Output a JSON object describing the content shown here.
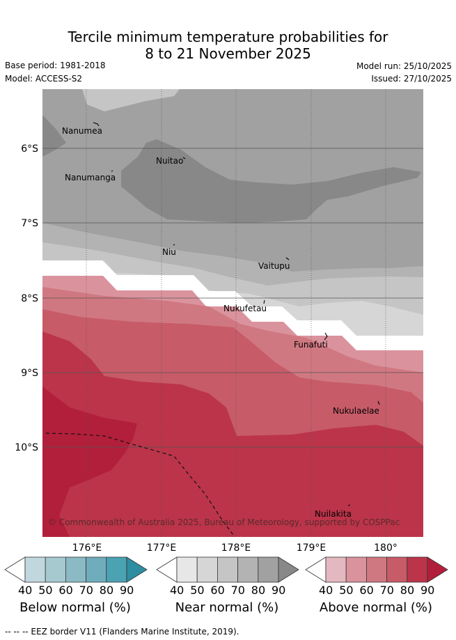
{
  "title": {
    "line1": "Tercile minimum temperature probabilities for",
    "line2": "8 to 21 November 2025"
  },
  "meta": {
    "base_period": "Base period: 1981-2018",
    "model": "Model: ACCESS-S2",
    "model_run": "Model run: 25/10/2025",
    "issued": "Issued: 27/10/2025"
  },
  "map": {
    "lat_labels": [
      "6°S",
      "7°S",
      "8°S",
      "9°S",
      "10°S"
    ],
    "lon_labels": [
      "176°E",
      "177°E",
      "178°E",
      "179°E",
      "180°"
    ],
    "places": [
      "Nanumea",
      "Nanumanga",
      "Nuitao",
      "Niu",
      "Vaitupu",
      "Nukufetau",
      "Funafuti",
      "Nukulaelae",
      "Nuilakita"
    ],
    "copyright": "© Commonwealth of Australia 2025, Bureau of Meteorology, supported by COSPPac"
  },
  "colorbars": [
    {
      "name": "Below normal (%)",
      "ticks": [
        "40",
        "50",
        "60",
        "70",
        "80",
        "90"
      ],
      "colors": [
        "#c0d7de",
        "#a6c9d0",
        "#8bbac5",
        "#6fadbd",
        "#4ba2b2",
        "#2e8da1"
      ]
    },
    {
      "name": "Near normal (%)",
      "ticks": [
        "40",
        "50",
        "60",
        "70",
        "80",
        "90"
      ],
      "colors": [
        "#e7e7e7",
        "#d6d6d6",
        "#c5c5c5",
        "#b3b3b3",
        "#a1a1a1",
        "#888888"
      ]
    },
    {
      "name": "Above normal (%)",
      "ticks": [
        "40",
        "50",
        "60",
        "70",
        "80",
        "90"
      ],
      "colors": [
        "#e4b8c0",
        "#da939d",
        "#d07881",
        "#c75b68",
        "#bb344a",
        "#b21f3a"
      ]
    }
  ],
  "footer": "-- -- -- EEZ border V11 (Flanders Marine Institute, 2019)."
}
